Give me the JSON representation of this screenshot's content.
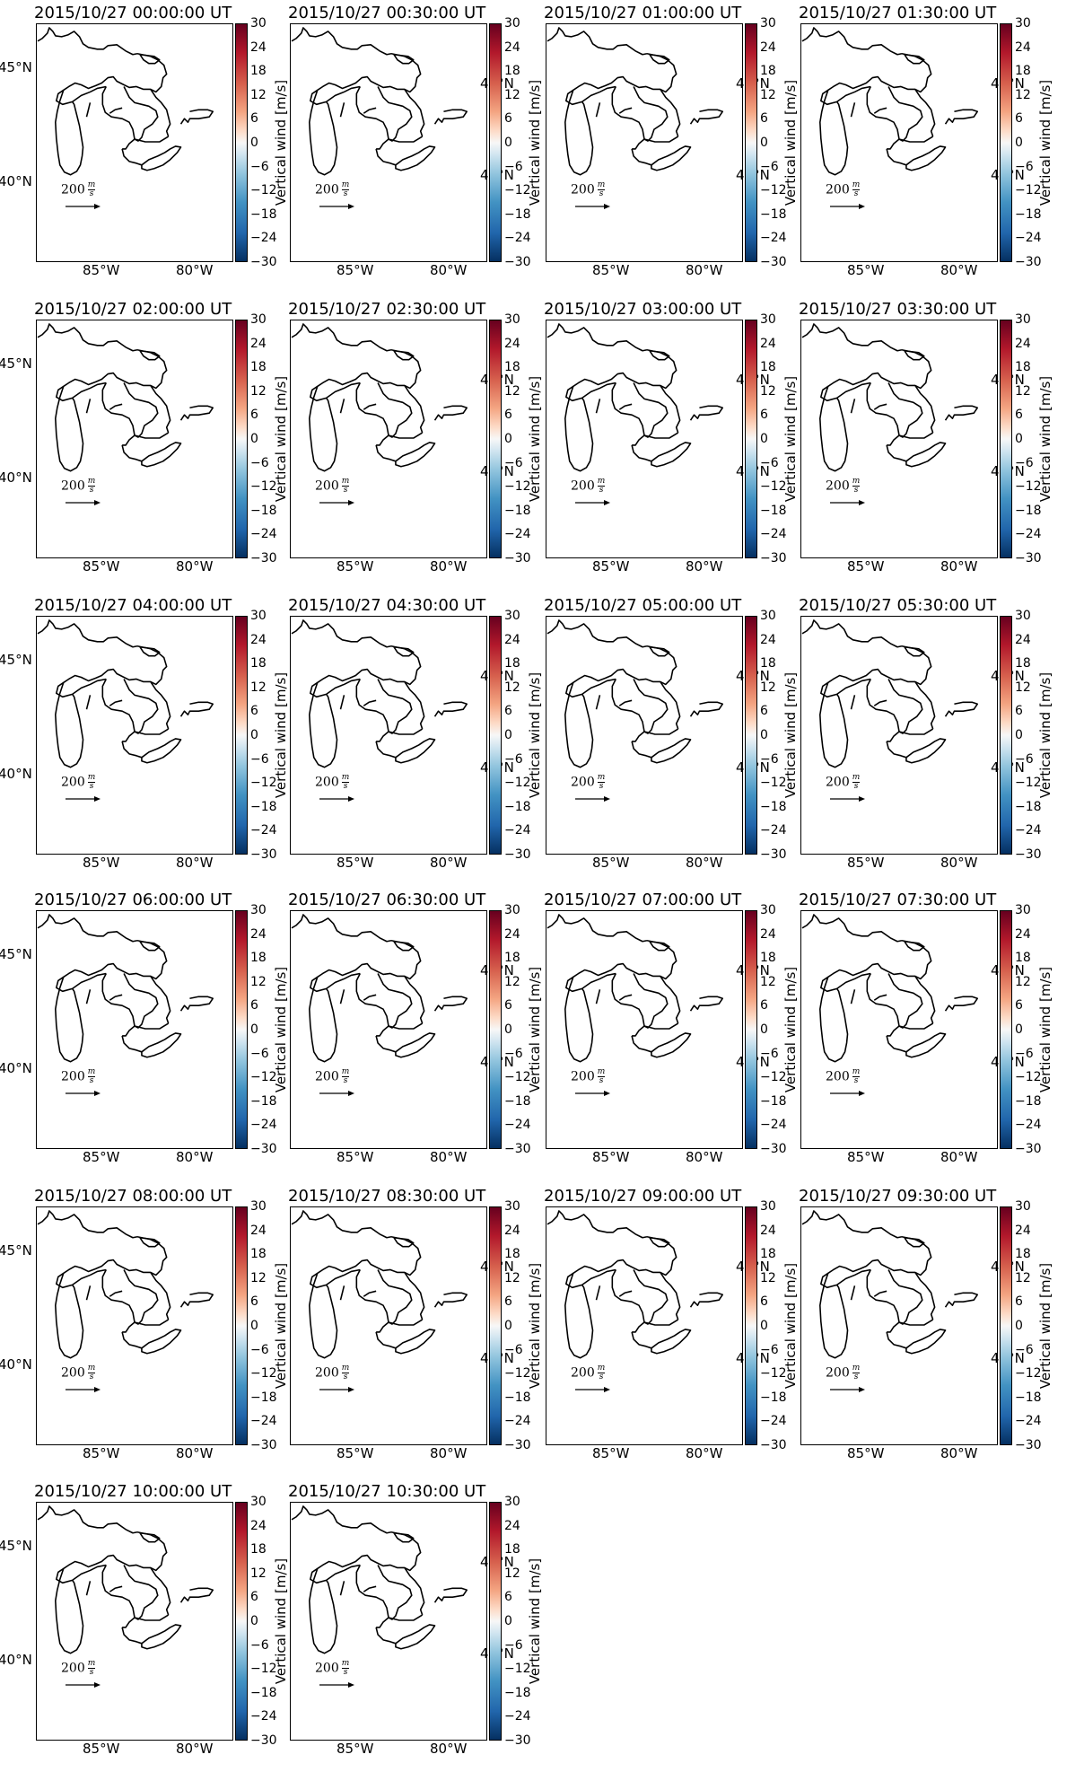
{
  "titles": [
    "2015/10/27 00:00:00 UT",
    "2015/10/27 00:30:00 UT",
    "2015/10/27 01:00:00 UT",
    "2015/10/27 01:30:00 UT",
    "2015/10/27 02:00:00 UT",
    "2015/10/27 02:30:00 UT",
    "2015/10/27 03:00:00 UT",
    "2015/10/27 03:30:00 UT",
    "2015/10/27 04:00:00 UT",
    "2015/10/27 04:30:00 UT",
    "2015/10/27 05:00:00 UT",
    "2015/10/27 05:30:00 UT",
    "2015/10/27 06:00:00 UT",
    "2015/10/27 06:30:00 UT",
    "2015/10/27 07:00:00 UT",
    "2015/10/27 07:30:00 UT",
    "2015/10/27 08:00:00 UT",
    "2015/10/27 08:30:00 UT",
    "2015/10/27 09:00:00 UT",
    "2015/10/27 09:30:00 UT",
    "2015/10/27 10:00:00 UT",
    "2015/10/27 10:30:00 UT"
  ],
  "latitude_labels": [
    "45°N",
    "40°N"
  ],
  "longitude_labels": [
    "85°W",
    "80°W"
  ],
  "colorbar": {
    "label": "Vertical wind [m/s]",
    "ticks": [
      "30",
      "24",
      "18",
      "12",
      "6",
      "0",
      "−6",
      "−12",
      "−18",
      "−24",
      "−30"
    ],
    "range": [
      -30,
      30
    ],
    "colormap": "RdBu_r"
  },
  "quiver_key": {
    "value": "200",
    "unit_num": "m",
    "unit_den": "s"
  },
  "chart_data": {
    "type": "map-grid",
    "region": "Great Lakes",
    "panel_count": 22,
    "colorbar_range": [
      -30,
      30
    ],
    "lat_ticks": [
      45,
      40
    ],
    "lon_ticks": [
      -85,
      -80
    ]
  }
}
